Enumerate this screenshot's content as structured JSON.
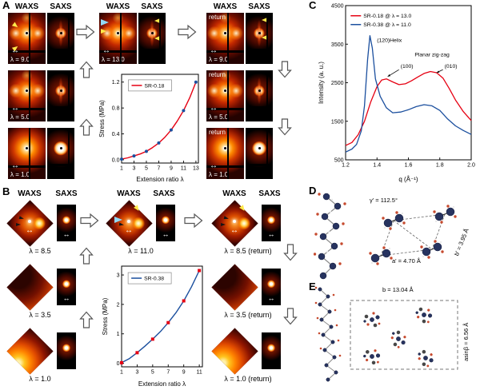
{
  "icons": {
    "double_arrow": "↔"
  },
  "figure": {
    "panel_a": {
      "label": "A",
      "waxs_header": "WAXS",
      "saxs_header": "SAXS",
      "left_rows": [
        {
          "lambda": "λ = 9.0"
        },
        {
          "lambda": "λ = 5.0"
        },
        {
          "lambda": "λ = 1.0"
        }
      ],
      "middle_lambda": "λ = 13.0",
      "right_rows": [
        {
          "ret": "return",
          "lambda": "λ = 9.0"
        },
        {
          "ret": "return",
          "lambda": "λ = 5.0"
        },
        {
          "ret": "return",
          "lambda": "λ = 1.0"
        }
      ]
    },
    "panel_b": {
      "label": "B",
      "waxs_header": "WAXS",
      "saxs_header": "SAXS",
      "left_rows": [
        {
          "lambda": "λ = 8.5"
        },
        {
          "lambda": "λ = 3.5"
        },
        {
          "lambda": "λ = 1.0"
        }
      ],
      "middle_lambda": "λ = 11.0",
      "right_rows": [
        {
          "lambda": "λ = 8.5 (return)"
        },
        {
          "lambda": "λ = 3.5 (return)"
        },
        {
          "lambda": "λ = 1.0 (return)"
        }
      ]
    },
    "panel_c": {
      "label": "C"
    },
    "panel_d": {
      "label": "D",
      "gamma_label": "γ' = 112.5°",
      "a_label": "a' = 4.70 Å",
      "b_label": "b' = 3.95 Å"
    },
    "panel_e": {
      "label": "E",
      "b_label": "b = 13.04 Å",
      "asinb_label": "asinβ = 6.56 Å"
    }
  },
  "chart_data": [
    {
      "id": "stress-sr018",
      "type": "line",
      "xlabel": "Extension ratio λ",
      "ylabel": "Stress (MPa)",
      "xlim": [
        1,
        13.4
      ],
      "ylim": [
        -0.05,
        1.32
      ],
      "xticks": [
        1,
        3,
        5,
        7,
        9,
        11,
        13
      ],
      "xtick_labels": [
        "1",
        "3",
        "5",
        "7",
        "9",
        "11",
        "13"
      ],
      "yticks": [
        0,
        0.4,
        0.8,
        1.2
      ],
      "ytick_labels": [
        "0.0",
        "0.4",
        "0.8",
        "1.2"
      ],
      "margins": {
        "l": 30,
        "r": 6,
        "t": 5,
        "b": 26
      },
      "grid": false,
      "legend": {
        "fx": 0.13,
        "fy": 0.08,
        "box": true,
        "w": 54,
        "entries": [
          {
            "name": "SR-0.18",
            "color": "#e60012"
          }
        ]
      },
      "series": [
        {
          "name": "SR-0.18",
          "color": "#e60012",
          "width": 1.4,
          "x": [
            1,
            2,
            3,
            4,
            5,
            6,
            7,
            8,
            9,
            10,
            11,
            12,
            13
          ],
          "y": [
            0.01,
            0.03,
            0.06,
            0.09,
            0.13,
            0.19,
            0.26,
            0.35,
            0.46,
            0.6,
            0.76,
            0.96,
            1.2
          ],
          "markers": {
            "shape": "circle",
            "color": "#1b4f9e",
            "size": 2,
            "x": [
              1,
              3,
              5,
              7,
              9,
              11,
              13
            ],
            "y": [
              0.01,
              0.06,
              0.13,
              0.26,
              0.46,
              0.76,
              1.2
            ]
          }
        }
      ]
    },
    {
      "id": "stress-sr038",
      "type": "line",
      "xlabel": "Extension ratio λ",
      "ylabel": "Stress (MPa)",
      "xlim": [
        1,
        11.4
      ],
      "ylim": [
        -0.12,
        3.3
      ],
      "xticks": [
        1,
        3,
        5,
        7,
        9,
        11
      ],
      "xtick_labels": [
        "1",
        "3",
        "5",
        "7",
        "9",
        "11"
      ],
      "yticks": [
        0,
        1,
        2,
        3
      ],
      "ytick_labels": [
        "0",
        "1",
        "2",
        "3"
      ],
      "margins": {
        "l": 26,
        "r": 7,
        "t": 5,
        "b": 27
      },
      "grid": false,
      "legend": {
        "fx": 0.12,
        "fy": 0.08,
        "box": true,
        "w": 54,
        "entries": [
          {
            "name": "SR-0.38",
            "color": "#1b4f9e"
          }
        ]
      },
      "series": [
        {
          "name": "SR-0.38",
          "color": "#1b4f9e",
          "width": 1.4,
          "x": [
            1,
            2,
            3,
            4,
            5,
            6,
            7,
            8,
            9,
            10,
            11
          ],
          "y": [
            0.02,
            0.16,
            0.36,
            0.58,
            0.82,
            1.08,
            1.38,
            1.72,
            2.12,
            2.6,
            3.15
          ],
          "markers": {
            "shape": "square",
            "color": "#e60012",
            "size": 2,
            "x": [
              1,
              3,
              5,
              7,
              9,
              11
            ],
            "y": [
              0.02,
              0.36,
              0.82,
              1.38,
              2.12,
              3.15
            ]
          }
        }
      ]
    },
    {
      "id": "intensity-vs-q",
      "type": "line",
      "xlabel": "q (Å⁻¹)",
      "ylabel": "Intensity (a. u.)",
      "xlim": [
        1.2,
        2.0
      ],
      "ylim": [
        500,
        4500
      ],
      "xticks": [
        1.2,
        1.4,
        1.6,
        1.8,
        2.0
      ],
      "xtick_labels": [
        "1.2",
        "1.4",
        "1.6",
        "1.8",
        "2.0"
      ],
      "yticks": [
        500,
        1500,
        2500,
        3500,
        4500
      ],
      "ytick_labels": [
        "500",
        "1500",
        "2500",
        "3500",
        "4500"
      ],
      "margins": {
        "l": 36,
        "r": 7,
        "t": 5,
        "b": 30
      },
      "grid": false,
      "legend": {
        "fx": 0.04,
        "fy": 0.04,
        "box": false,
        "entries": [
          {
            "name": "SR-0.18  @ λ = 13.0",
            "color": "#e60012"
          },
          {
            "name": "SR-0.38  @ λ = 11.0",
            "color": "#1b4f9e"
          }
        ]
      },
      "series": [
        {
          "name": "SR-0.18 @ λ = 13.0",
          "color": "#e60012",
          "width": 1.3,
          "x": [
            1.2,
            1.24,
            1.28,
            1.32,
            1.36,
            1.4,
            1.43,
            1.46,
            1.5,
            1.54,
            1.58,
            1.62,
            1.66,
            1.7,
            1.74,
            1.78,
            1.82,
            1.86,
            1.9,
            1.95,
            2.0
          ],
          "y": [
            870,
            950,
            1150,
            1500,
            2000,
            2400,
            2570,
            2600,
            2520,
            2450,
            2470,
            2550,
            2650,
            2740,
            2790,
            2760,
            2620,
            2350,
            2050,
            1750,
            1520
          ]
        },
        {
          "name": "SR-0.38 @ λ = 11.0",
          "color": "#1b4f9e",
          "width": 1.3,
          "x": [
            1.2,
            1.24,
            1.27,
            1.3,
            1.32,
            1.34,
            1.355,
            1.37,
            1.39,
            1.42,
            1.46,
            1.5,
            1.55,
            1.6,
            1.65,
            1.7,
            1.75,
            1.8,
            1.85,
            1.9,
            1.95,
            2.0
          ],
          "y": [
            700,
            780,
            900,
            1250,
            1900,
            3100,
            3720,
            3400,
            2600,
            2150,
            1850,
            1720,
            1740,
            1800,
            1880,
            1930,
            1900,
            1780,
            1560,
            1380,
            1260,
            1160
          ]
        }
      ],
      "annotations": [
        {
          "text": "(120)Helix",
          "x": 1.4,
          "y": 3560
        },
        {
          "text": "(100)",
          "x": 1.55,
          "y": 2880,
          "arrow_to": [
            1.468,
            2660
          ]
        },
        {
          "text": "Planar zig-zag",
          "x": 1.64,
          "y": 3180
        },
        {
          "text": "(010)",
          "x": 1.83,
          "y": 2880,
          "arrow_to": [
            1.78,
            2760
          ]
        }
      ]
    }
  ]
}
